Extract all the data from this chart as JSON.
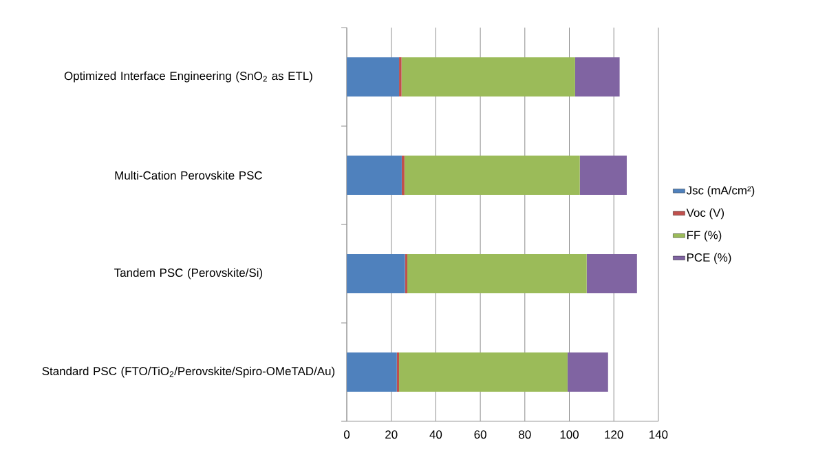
{
  "chart_data": {
    "type": "bar",
    "orientation": "horizontal",
    "stacked": true,
    "categories": [
      "Optimized Interface Engineering (SnO$_{2}$ as ETL)",
      "Multi-Cation Perovskite PSC",
      "Tandem PSC (Perovskite/Si)",
      "Standard PSC (FTO/TiO$_{2}$/Perovskite/Spiro-OMeTAD/Au)"
    ],
    "series": [
      {
        "name": "Jsc (mA/cm²)",
        "color": "#4f81bd",
        "values": [
          23.5,
          24.7,
          26.2,
          22.5
        ]
      },
      {
        "name": "Voc (V)",
        "color": "#c0504d",
        "values": [
          1.1,
          1.2,
          1.0,
          1.0
        ]
      },
      {
        "name": "FF (%)",
        "color": "#9bbb59",
        "values": [
          78,
          78.8,
          80.6,
          75.7
        ]
      },
      {
        "name": "PCE (%)",
        "color": "#8064a2",
        "values": [
          20,
          21.1,
          22.6,
          18.2
        ]
      }
    ],
    "xlim": [
      0,
      140
    ],
    "xticks": [
      0,
      20,
      40,
      60,
      80,
      100,
      120,
      140
    ],
    "grid": "x",
    "legend": "right"
  }
}
